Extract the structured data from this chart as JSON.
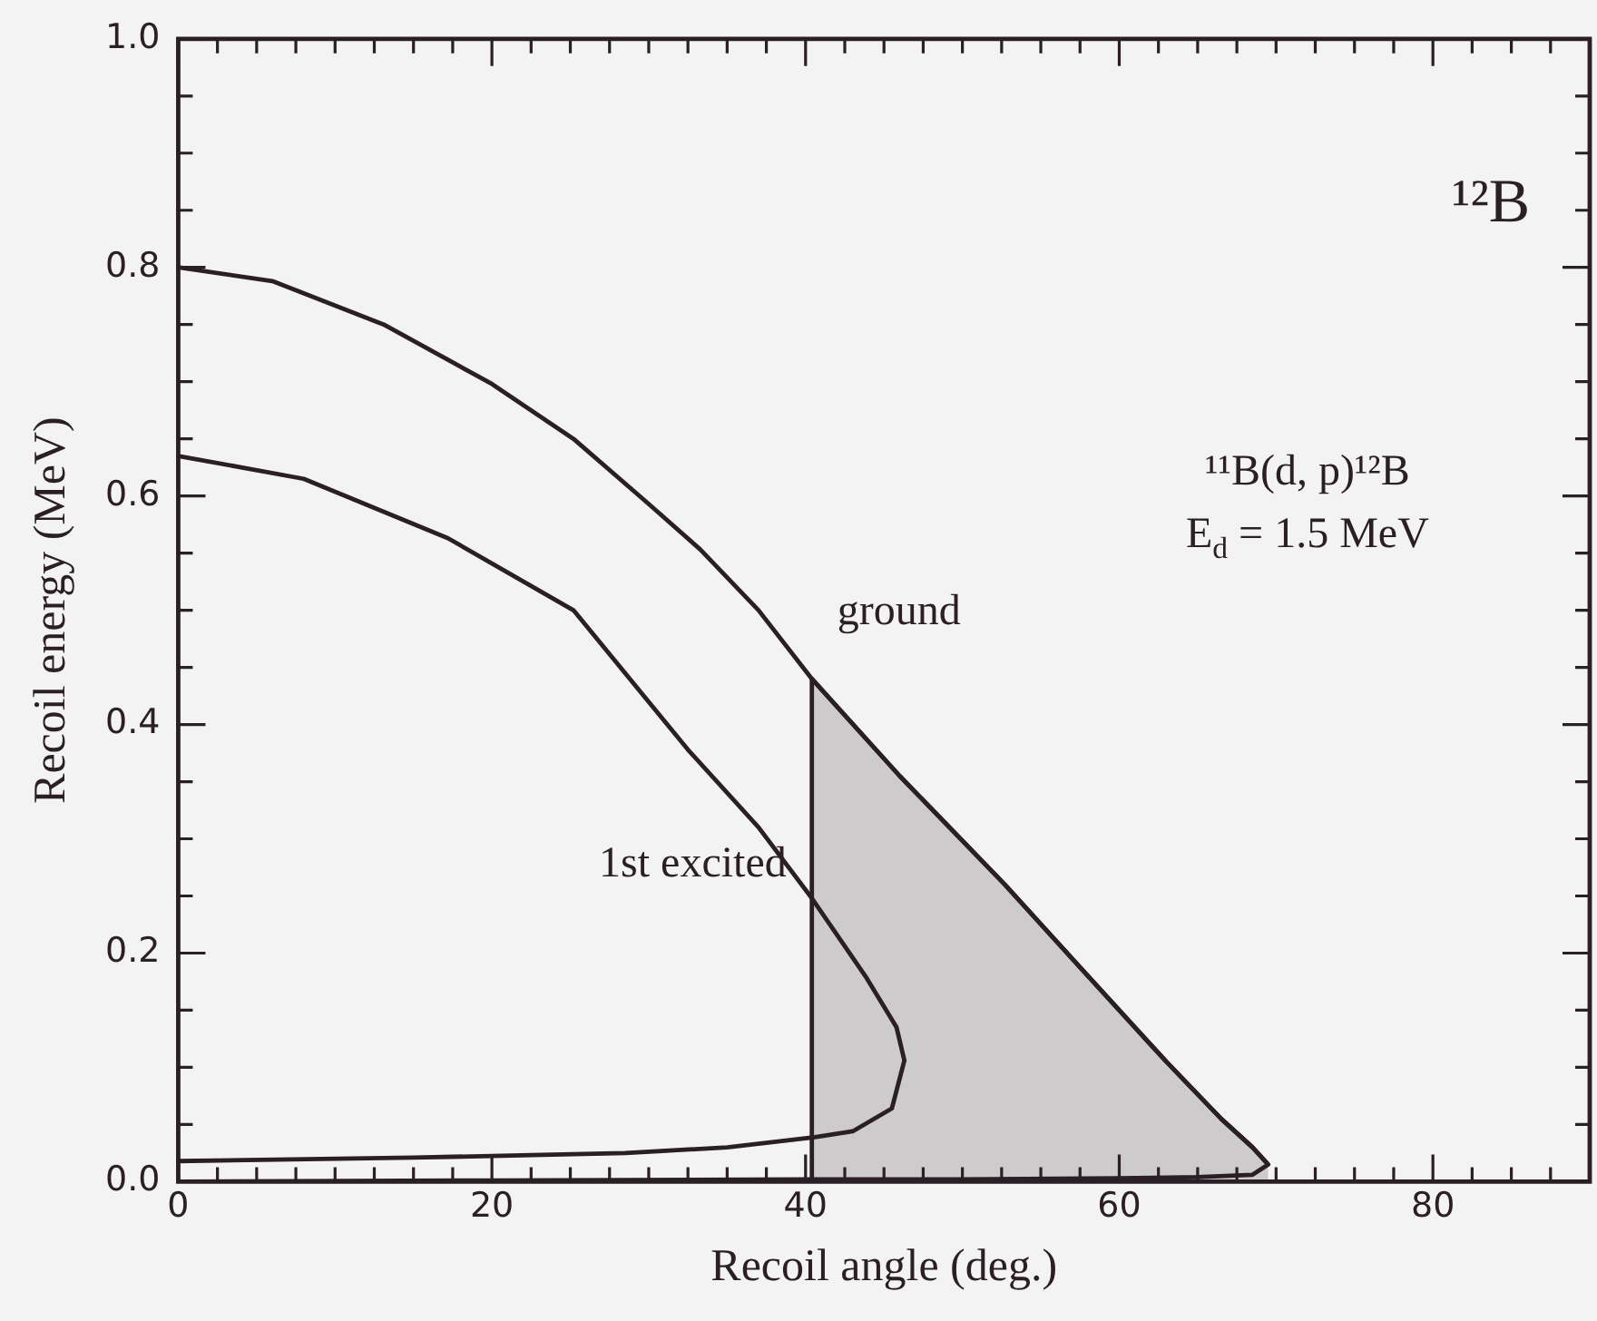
{
  "chart_data": {
    "type": "line",
    "xlabel": "Recoil angle (deg.)",
    "ylabel": "Recoil energy (MeV)",
    "annotations": [
      "¹²B",
      "¹¹B(d, p)¹²B",
      "E$_{d}$ = 1.5 MeV"
    ],
    "series": [
      {
        "name": "ground",
        "color": "#2a1f24",
        "x": [
          0,
          6,
          13.1,
          20,
          25.2,
          30,
          33.3,
          37,
          40.4,
          46,
          52.7,
          58,
          63,
          66.5,
          68.5,
          69.5,
          68.5,
          65,
          60,
          50,
          40,
          20,
          0
        ],
        "values": [
          0.8,
          0.788,
          0.75,
          0.698,
          0.65,
          0.593,
          0.553,
          0.5,
          0.44,
          0.355,
          0.26,
          0.18,
          0.105,
          0.055,
          0.03,
          0.015,
          0.006,
          0.004,
          0.003,
          0.002,
          0.002,
          0.001,
          0
        ]
      },
      {
        "name": "1st excited",
        "color": "#2a1f24",
        "x": [
          0,
          8,
          17.2,
          25.2,
          32.5,
          37,
          40.4,
          43.9,
          45.8,
          46.3,
          45.5,
          43,
          40.6,
          35,
          28.5,
          15,
          0
        ],
        "values": [
          0.635,
          0.615,
          0.563,
          0.5,
          0.378,
          0.31,
          0.248,
          0.178,
          0.135,
          0.106,
          0.064,
          0.044,
          0.039,
          0.03,
          0.025,
          0.021,
          0.018
        ]
      },
      {
        "type": "area",
        "color": "#2a1f24",
        "x": [
          40.4,
          40.4,
          46,
          52.7,
          58,
          63,
          66.5,
          68.5,
          69.5
        ],
        "values": [
          0,
          0.44,
          0.355,
          0.26,
          0.18,
          0.105,
          0.055,
          0.03,
          0.015
        ]
      }
    ],
    "xlim": [
      0,
      90
    ],
    "xticks": [
      0,
      {
        "value": 2.5,
        "label": null
      },
      {
        "value": 5,
        "label": null
      },
      {
        "value": 7.5,
        "label": null
      },
      {
        "value": 10,
        "label": null
      },
      {
        "value": 12.5,
        "label": null
      },
      {
        "value": 15,
        "label": null
      },
      {
        "value": 17.5,
        "label": null
      },
      20,
      {
        "value": 22.5,
        "label": null
      },
      {
        "value": 25,
        "label": null
      },
      {
        "value": 27.5,
        "label": null
      },
      {
        "value": 30,
        "label": null
      },
      {
        "value": 32.5,
        "label": null
      },
      {
        "value": 35,
        "label": null
      },
      {
        "value": 37.5,
        "label": null
      },
      40,
      {
        "value": 42.5,
        "label": null
      },
      {
        "value": 45,
        "label": null
      },
      {
        "value": 47.5,
        "label": null
      },
      {
        "value": 50,
        "label": null
      },
      {
        "value": 52.5,
        "label": null
      },
      {
        "value": 55,
        "label": null
      },
      {
        "value": 57.5,
        "label": null
      },
      60,
      {
        "value": 62.5,
        "label": null
      },
      {
        "value": 65,
        "label": null
      },
      {
        "value": 67.5,
        "label": null
      },
      {
        "value": 70,
        "label": null
      },
      {
        "value": 72.5,
        "label": null
      },
      {
        "value": 75,
        "label": null
      },
      {
        "value": 77.5,
        "label": null
      },
      80,
      {
        "value": 82.5,
        "label": null
      },
      {
        "value": 85,
        "label": null
      },
      {
        "value": 87.5,
        "label": null
      }
    ],
    "ylim": [
      0,
      1
    ],
    "yticks": [
      {
        "value": 0,
        "label": "0.0"
      },
      {
        "value": 0.05,
        "label": null
      },
      {
        "value": 0.1,
        "label": null
      },
      {
        "value": 0.15,
        "label": null
      },
      0.2,
      {
        "value": 0.25,
        "label": null
      },
      {
        "value": 0.3,
        "label": null
      },
      {
        "value": 0.35,
        "label": null
      },
      0.4,
      {
        "value": 0.45,
        "label": null
      },
      {
        "value": 0.5,
        "label": null
      },
      {
        "value": 0.55,
        "label": null
      },
      0.6,
      {
        "value": 0.65,
        "label": null
      },
      {
        "value": 0.7,
        "label": null
      },
      {
        "value": 0.75,
        "label": null
      },
      0.8,
      {
        "value": 0.85,
        "label": null
      },
      {
        "value": 0.9,
        "label": null
      },
      {
        "value": 0.95,
        "label": null
      },
      {
        "value": 1,
        "label": "1.0"
      }
    ],
    "grid": false,
    "legend": false,
    "marker": "none",
    "line_style": "solid"
  }
}
